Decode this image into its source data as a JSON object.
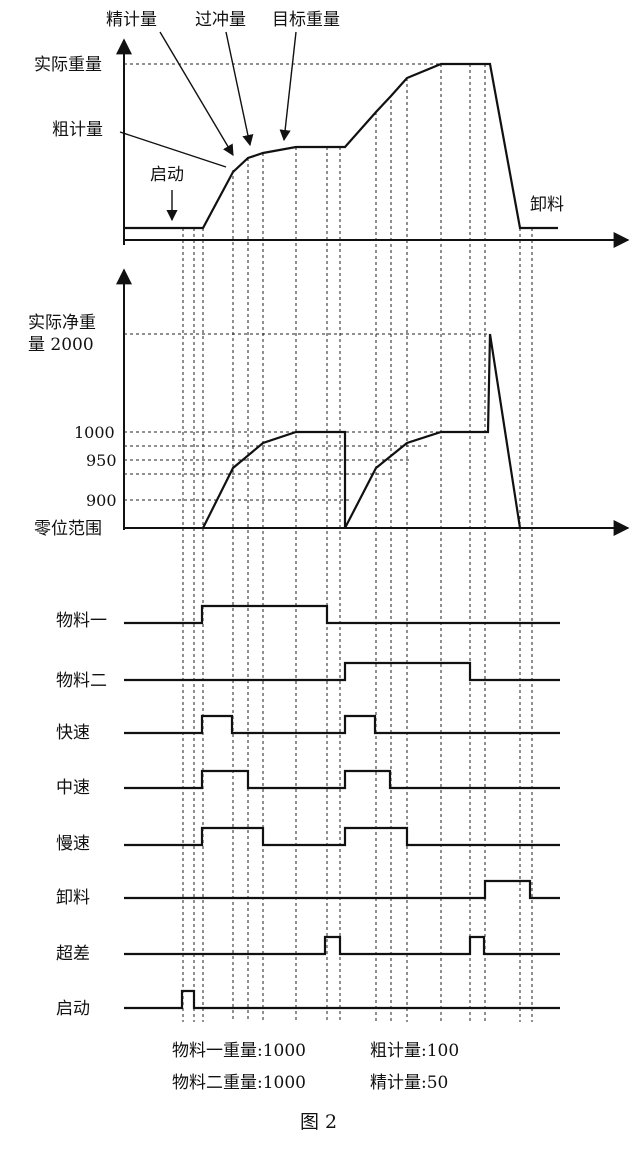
{
  "top_panel": {
    "labels": {
      "actual_weight": "实际重量",
      "fine_metering": "精计量",
      "overshoot": "过冲量",
      "target_weight": "目标重量",
      "coarse_metering": "粗计量",
      "start": "启动",
      "discharge": "卸料"
    }
  },
  "middle_panel": {
    "labels": {
      "actual_net_line1": "实际净重",
      "actual_net_line2": "量 2000",
      "y1000": "1000",
      "y950": "950",
      "y900": "900",
      "zero_range": "零位范围"
    }
  },
  "signals": [
    {
      "name": "物料一",
      "intervals": [
        [
          202,
          327
        ]
      ]
    },
    {
      "name": "物料二",
      "intervals": [
        [
          345,
          470
        ]
      ]
    },
    {
      "name": "快速",
      "intervals": [
        [
          202,
          232
        ],
        [
          345,
          375
        ]
      ]
    },
    {
      "name": "中速",
      "intervals": [
        [
          202,
          248
        ],
        [
          345,
          390
        ]
      ]
    },
    {
      "name": "慢速",
      "intervals": [
        [
          202,
          263
        ],
        [
          345,
          407
        ]
      ]
    },
    {
      "name": "卸料",
      "intervals": [
        [
          485,
          530
        ]
      ]
    },
    {
      "name": "超差",
      "intervals": [
        [
          325,
          340
        ],
        [
          470,
          484
        ]
      ]
    },
    {
      "name": "启动",
      "intervals": [
        [
          182,
          194
        ]
      ]
    }
  ],
  "footer": {
    "line1_left": "物料一重量:1000",
    "line1_right": "粗计量:100",
    "line2_left": "物料二重量:1000",
    "line2_right": "精计量:50"
  },
  "caption": "图 2"
}
